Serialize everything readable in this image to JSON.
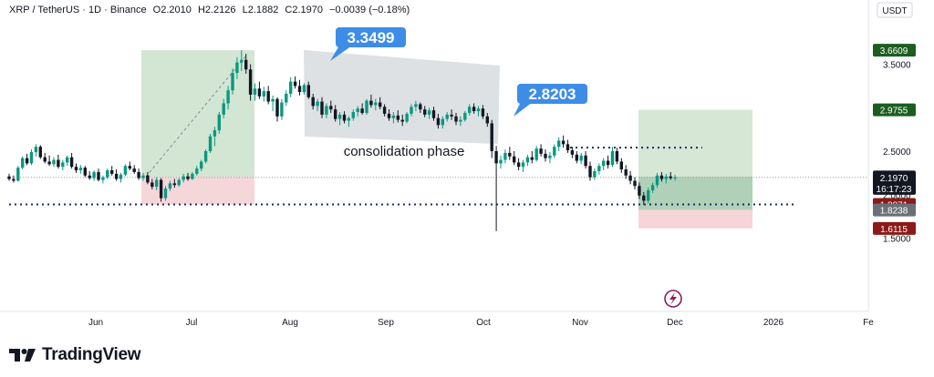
{
  "header": {
    "symbol": "XRP / TetherUS · 1D · Binance",
    "open": "O2.2010",
    "high": "H2.2126",
    "low": "L2.1882",
    "close": "C2.1970",
    "change": "−0.0039 (−0.18%)"
  },
  "currency": "USDT",
  "brand": "TradingView",
  "colors": {
    "up": "#089981",
    "down": "#131722",
    "target_zone": "#c8dfc8",
    "stop_zone": "#f4d3d6",
    "label_blue": "#3d8ce6",
    "consolidation": "#d7dcde"
  },
  "chart_data": {
    "type": "candlestick",
    "x_tick_labels": [
      "Jun",
      "Jul",
      "Aug",
      "Sep",
      "Oct",
      "Nov",
      "Dec",
      "2026",
      "Fe"
    ],
    "y_tick_labels": [
      "3.5000",
      "2.5000",
      "2.0000",
      "1.5000"
    ],
    "ylim": [
      1.0,
      3.75
    ],
    "price_badges": [
      {
        "value": "3.6609",
        "kind": "green"
      },
      {
        "value": "2.9755",
        "kind": "green"
      },
      {
        "value": "2.2066",
        "kind": "gray"
      },
      {
        "value": "2.1970",
        "sub": "16:17:23",
        "kind": "current"
      },
      {
        "value": "1.8871",
        "kind": "red"
      },
      {
        "value": "1.8238",
        "kind": "gray"
      },
      {
        "value": "1.6115",
        "kind": "red"
      }
    ],
    "annotations": [
      {
        "text": "3.3499",
        "kind": "callout"
      },
      {
        "text": "2.8203",
        "kind": "callout"
      },
      {
        "text": "consolidation phase",
        "kind": "label"
      }
    ],
    "candles_ohlc_note": "daily candles approximated from the picture",
    "candles": [
      [
        2.21,
        2.24,
        2.16,
        2.18
      ],
      [
        2.18,
        2.22,
        2.14,
        2.16
      ],
      [
        2.16,
        2.33,
        2.15,
        2.31
      ],
      [
        2.31,
        2.44,
        2.29,
        2.42
      ],
      [
        2.42,
        2.47,
        2.34,
        2.36
      ],
      [
        2.36,
        2.52,
        2.34,
        2.49
      ],
      [
        2.49,
        2.58,
        2.44,
        2.55
      ],
      [
        2.55,
        2.57,
        2.41,
        2.43
      ],
      [
        2.43,
        2.48,
        2.36,
        2.38
      ],
      [
        2.38,
        2.45,
        2.33,
        2.35
      ],
      [
        2.35,
        2.43,
        2.32,
        2.4
      ],
      [
        2.4,
        2.46,
        2.3,
        2.32
      ],
      [
        2.32,
        2.4,
        2.28,
        2.37
      ],
      [
        2.37,
        2.45,
        2.33,
        2.43
      ],
      [
        2.43,
        2.48,
        2.3,
        2.32
      ],
      [
        2.32,
        2.36,
        2.25,
        2.28
      ],
      [
        2.28,
        2.34,
        2.24,
        2.31
      ],
      [
        2.31,
        2.33,
        2.2,
        2.22
      ],
      [
        2.22,
        2.27,
        2.17,
        2.19
      ],
      [
        2.19,
        2.28,
        2.16,
        2.26
      ],
      [
        2.26,
        2.3,
        2.15,
        2.17
      ],
      [
        2.17,
        2.22,
        2.13,
        2.2
      ],
      [
        2.2,
        2.3,
        2.18,
        2.28
      ],
      [
        2.28,
        2.33,
        2.22,
        2.24
      ],
      [
        2.24,
        2.29,
        2.16,
        2.18
      ],
      [
        2.18,
        2.25,
        2.14,
        2.23
      ],
      [
        2.23,
        2.35,
        2.21,
        2.33
      ],
      [
        2.33,
        2.38,
        2.28,
        2.3
      ],
      [
        2.3,
        2.34,
        2.24,
        2.26
      ],
      [
        2.26,
        2.3,
        2.17,
        2.19
      ],
      [
        2.19,
        2.25,
        2.16,
        2.22
      ],
      [
        2.22,
        2.26,
        2.12,
        2.14
      ],
      [
        2.14,
        2.18,
        2.06,
        2.09
      ],
      [
        2.09,
        2.2,
        2.05,
        2.17
      ],
      [
        2.17,
        2.19,
        1.92,
        1.96
      ],
      [
        1.96,
        2.1,
        1.93,
        2.07
      ],
      [
        2.07,
        2.16,
        2.04,
        2.13
      ],
      [
        2.13,
        2.18,
        2.08,
        2.11
      ],
      [
        2.11,
        2.19,
        2.09,
        2.17
      ],
      [
        2.17,
        2.24,
        2.14,
        2.21
      ],
      [
        2.21,
        2.25,
        2.16,
        2.18
      ],
      [
        2.18,
        2.26,
        2.17,
        2.24
      ],
      [
        2.24,
        2.33,
        2.22,
        2.3
      ],
      [
        2.3,
        2.4,
        2.27,
        2.38
      ],
      [
        2.38,
        2.52,
        2.36,
        2.5
      ],
      [
        2.5,
        2.7,
        2.48,
        2.67
      ],
      [
        2.67,
        2.78,
        2.56,
        2.74
      ],
      [
        2.74,
        2.95,
        2.7,
        2.92
      ],
      [
        2.92,
        3.1,
        2.88,
        3.05
      ],
      [
        3.05,
        3.25,
        2.98,
        3.2
      ],
      [
        3.2,
        3.45,
        3.15,
        3.4
      ],
      [
        3.4,
        3.58,
        3.33,
        3.52
      ],
      [
        3.52,
        3.66,
        3.42,
        3.55
      ],
      [
        3.55,
        3.62,
        3.39,
        3.44
      ],
      [
        3.44,
        3.5,
        3.08,
        3.15
      ],
      [
        3.15,
        3.28,
        3.08,
        3.22
      ],
      [
        3.22,
        3.3,
        3.1,
        3.13
      ],
      [
        3.13,
        3.24,
        3.07,
        3.19
      ],
      [
        3.19,
        3.25,
        3.04,
        3.07
      ],
      [
        3.07,
        3.14,
        2.96,
        3.1
      ],
      [
        3.1,
        3.12,
        2.84,
        2.9
      ],
      [
        2.9,
        3.1,
        2.86,
        3.06
      ],
      [
        3.06,
        3.2,
        3.02,
        3.16
      ],
      [
        3.16,
        3.35,
        3.12,
        3.3
      ],
      [
        3.3,
        3.36,
        3.22,
        3.25
      ],
      [
        3.25,
        3.32,
        3.14,
        3.18
      ],
      [
        3.18,
        3.28,
        3.15,
        3.26
      ],
      [
        3.26,
        3.3,
        3.1,
        3.12
      ],
      [
        3.12,
        3.16,
        2.98,
        3.02
      ],
      [
        3.02,
        3.1,
        2.96,
        3.07
      ],
      [
        3.07,
        3.12,
        2.88,
        2.92
      ],
      [
        2.92,
        3.05,
        2.88,
        3.02
      ],
      [
        3.02,
        3.08,
        2.94,
        2.98
      ],
      [
        2.98,
        3.03,
        2.84,
        2.87
      ],
      [
        2.87,
        2.95,
        2.8,
        2.92
      ],
      [
        2.92,
        2.96,
        2.82,
        2.85
      ],
      [
        2.85,
        2.9,
        2.78,
        2.88
      ],
      [
        2.88,
        2.98,
        2.85,
        2.95
      ],
      [
        2.95,
        3.02,
        2.9,
        2.99
      ],
      [
        2.99,
        3.05,
        2.92,
        2.94
      ],
      [
        2.94,
        3.1,
        2.92,
        3.08
      ],
      [
        3.08,
        3.15,
        3.0,
        3.03
      ],
      [
        3.03,
        3.1,
        2.97,
        3.06
      ],
      [
        3.06,
        3.12,
        2.98,
        3.01
      ],
      [
        3.01,
        3.04,
        2.9,
        2.93
      ],
      [
        2.93,
        2.98,
        2.85,
        2.88
      ],
      [
        2.88,
        2.95,
        2.82,
        2.91
      ],
      [
        2.91,
        2.97,
        2.83,
        2.86
      ],
      [
        2.86,
        2.92,
        2.79,
        2.84
      ],
      [
        2.84,
        2.95,
        2.82,
        2.93
      ],
      [
        2.93,
        3.04,
        2.9,
        3.01
      ],
      [
        3.01,
        3.08,
        2.96,
        3.04
      ],
      [
        3.04,
        3.06,
        2.94,
        2.98
      ],
      [
        2.98,
        3.02,
        2.89,
        2.92
      ],
      [
        2.92,
        3.0,
        2.87,
        2.97
      ],
      [
        2.97,
        3.01,
        2.85,
        2.88
      ],
      [
        2.88,
        2.93,
        2.76,
        2.8
      ],
      [
        2.8,
        2.9,
        2.76,
        2.87
      ],
      [
        2.87,
        2.95,
        2.84,
        2.92
      ],
      [
        2.92,
        2.98,
        2.86,
        2.9
      ],
      [
        2.9,
        2.94,
        2.8,
        2.84
      ],
      [
        2.84,
        2.9,
        2.79,
        2.86
      ],
      [
        2.86,
        2.96,
        2.84,
        2.94
      ],
      [
        2.94,
        3.04,
        2.91,
        3.01
      ],
      [
        3.01,
        3.05,
        2.93,
        2.96
      ],
      [
        2.96,
        3.02,
        2.9,
        2.99
      ],
      [
        2.99,
        3.03,
        2.87,
        2.9
      ],
      [
        2.9,
        2.94,
        2.78,
        2.82
      ],
      [
        2.82,
        2.86,
        2.42,
        2.5
      ],
      [
        2.5,
        2.56,
        1.58,
        2.36
      ],
      [
        2.36,
        2.45,
        2.3,
        2.4
      ],
      [
        2.4,
        2.52,
        2.36,
        2.48
      ],
      [
        2.48,
        2.55,
        2.4,
        2.44
      ],
      [
        2.44,
        2.5,
        2.34,
        2.37
      ],
      [
        2.37,
        2.42,
        2.28,
        2.32
      ],
      [
        2.32,
        2.4,
        2.26,
        2.37
      ],
      [
        2.37,
        2.46,
        2.33,
        2.43
      ],
      [
        2.43,
        2.5,
        2.36,
        2.4
      ],
      [
        2.4,
        2.56,
        2.38,
        2.53
      ],
      [
        2.53,
        2.58,
        2.44,
        2.47
      ],
      [
        2.47,
        2.52,
        2.38,
        2.42
      ],
      [
        2.42,
        2.49,
        2.36,
        2.45
      ],
      [
        2.45,
        2.58,
        2.42,
        2.55
      ],
      [
        2.55,
        2.66,
        2.5,
        2.62
      ],
      [
        2.62,
        2.68,
        2.54,
        2.58
      ],
      [
        2.58,
        2.63,
        2.48,
        2.51
      ],
      [
        2.51,
        2.55,
        2.42,
        2.46
      ],
      [
        2.46,
        2.5,
        2.36,
        2.39
      ],
      [
        2.39,
        2.48,
        2.35,
        2.45
      ],
      [
        2.45,
        2.5,
        2.3,
        2.33
      ],
      [
        2.33,
        2.38,
        2.16,
        2.2
      ],
      [
        2.2,
        2.3,
        2.17,
        2.27
      ],
      [
        2.27,
        2.36,
        2.23,
        2.33
      ],
      [
        2.33,
        2.42,
        2.28,
        2.39
      ],
      [
        2.39,
        2.45,
        2.3,
        2.34
      ],
      [
        2.34,
        2.55,
        2.32,
        2.5
      ],
      [
        2.5,
        2.54,
        2.35,
        2.38
      ],
      [
        2.38,
        2.42,
        2.25,
        2.29
      ],
      [
        2.29,
        2.34,
        2.18,
        2.22
      ],
      [
        2.22,
        2.27,
        2.12,
        2.16
      ],
      [
        2.16,
        2.2,
        2.06,
        2.1
      ],
      [
        2.1,
        2.14,
        1.95,
        1.99
      ],
      [
        1.99,
        2.03,
        1.88,
        1.93
      ],
      [
        1.93,
        2.08,
        1.9,
        2.05
      ],
      [
        2.05,
        2.14,
        2.02,
        2.11
      ],
      [
        2.11,
        2.25,
        2.08,
        2.22
      ],
      [
        2.22,
        2.26,
        2.15,
        2.18
      ],
      [
        2.18,
        2.24,
        2.13,
        2.21
      ],
      [
        2.21,
        2.26,
        2.17,
        2.19
      ],
      [
        2.19,
        2.23,
        2.16,
        2.2
      ]
    ]
  }
}
